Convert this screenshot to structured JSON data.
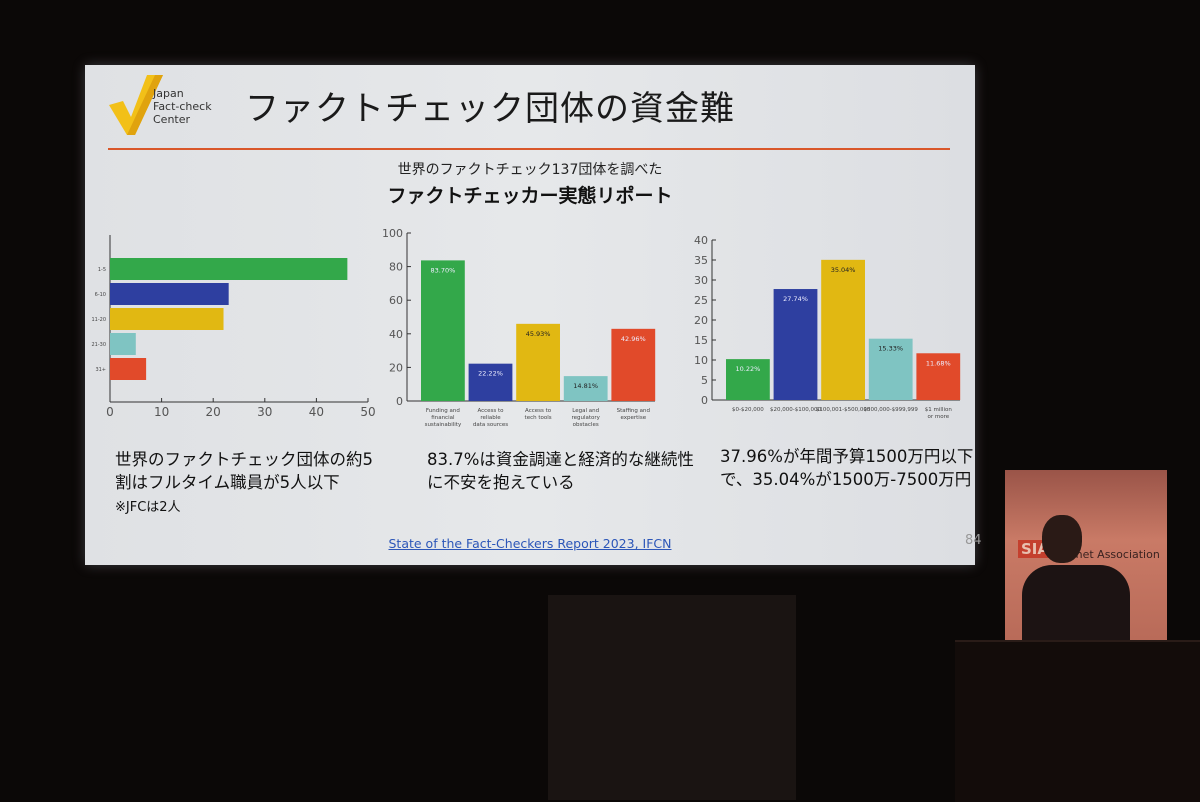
{
  "slide": {
    "logo_text": [
      "Japan",
      "Fact-check",
      "Center"
    ],
    "title": "ファクトチェック団体の資金難",
    "subtitle_line1": "世界のファクトチェック137団体を調べた",
    "subtitle_line2": "ファクトチェッカー実態リポート",
    "captions": [
      {
        "main": "世界のファクトチェック団体の約5割はフルタイム職員が5人以下",
        "note": "※JFCは2人"
      },
      {
        "main": "83.7%は資金調達と経済的な継続性に不安を抱えている"
      },
      {
        "main": "37.96%が年間予算1500万円以下で、35.04%が1500万-7500万円"
      }
    ],
    "source": "State of the Fact-Checkers Report 2023, IFCN",
    "page_number": "84",
    "accent_color": "#d9572a"
  },
  "banner": {
    "logo": "SIA",
    "text": "Internet Association"
  },
  "chart_data": [
    {
      "type": "bar",
      "orientation": "horizontal",
      "categories": [
        "1-5",
        "6-10",
        "11-20",
        "21-30",
        "31+"
      ],
      "values": [
        46,
        23,
        22,
        5,
        7
      ],
      "colors": [
        "#33a84a",
        "#2e3fa0",
        "#e1b812",
        "#7fc4c2",
        "#e14a2a"
      ],
      "xlim": [
        0,
        50
      ],
      "xticks": [
        "0",
        "10",
        "20",
        "30",
        "40",
        "50"
      ]
    },
    {
      "type": "bar",
      "categories": [
        "Funding and financial sustainability",
        "Access to reliable data sources",
        "Access to tech tools",
        "Legal and regulatory obstacles",
        "Staffing and expertise"
      ],
      "values": [
        83.7,
        22.22,
        45.93,
        14.81,
        42.96
      ],
      "data_labels": [
        "83.70%",
        "22.22%",
        "45.93%",
        "14.81%",
        "42.96%"
      ],
      "colors": [
        "#33a84a",
        "#2e3fa0",
        "#e1b812",
        "#7fc4c2",
        "#e14a2a"
      ],
      "ylim": [
        0,
        100
      ],
      "yticks": [
        "0",
        "20",
        "40",
        "60",
        "80",
        "100"
      ]
    },
    {
      "type": "bar",
      "categories": [
        "$0-$20,000",
        "$20,000-$100,000",
        "$100,001-$500,000",
        "$500,000-$999,999",
        "$1 million or more"
      ],
      "values": [
        10.22,
        27.74,
        35.04,
        15.33,
        11.68
      ],
      "data_labels": [
        "10.22%",
        "27.74%",
        "35.04%",
        "15.33%",
        "11.68%"
      ],
      "colors": [
        "#33a84a",
        "#2e3fa0",
        "#e1b812",
        "#7fc4c2",
        "#e14a2a"
      ],
      "ylim": [
        0,
        40
      ],
      "yticks": [
        "0",
        "5",
        "10",
        "15",
        "20",
        "25",
        "30",
        "35",
        "40"
      ]
    }
  ]
}
